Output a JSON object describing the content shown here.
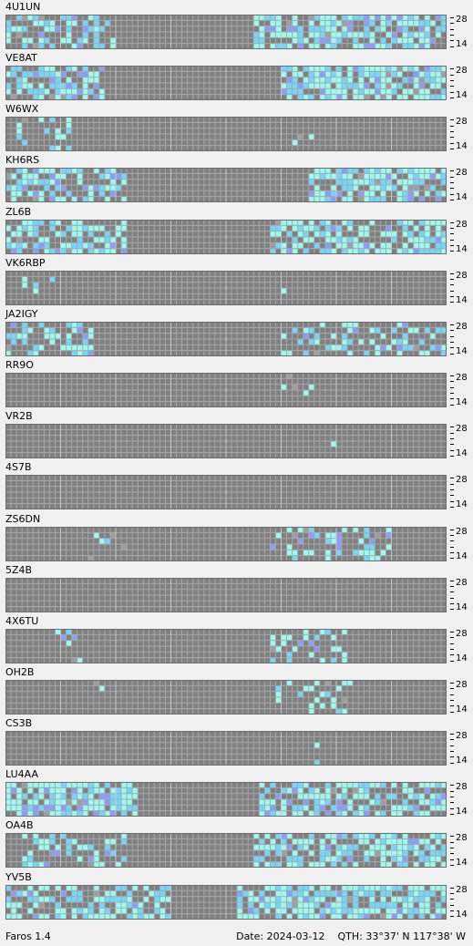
{
  "colors": {
    "panel_bg": "#f0f0f0",
    "cell_off": "#808080",
    "cell_border": "#a8a8a8",
    "grid_border": "#6e6e6e",
    "weak": "#9e9e9e",
    "good": "#98fcf0",
    "strong": "#70d8ff",
    "very_strong": "#8a9cff"
  },
  "band_labels": {
    "top": "28",
    "bottom": "14"
  },
  "beacons": [
    {
      "call": "4U1UN"
    },
    {
      "call": "VE8AT"
    },
    {
      "call": "W6WX"
    },
    {
      "call": "KH6RS"
    },
    {
      "call": "ZL6B"
    },
    {
      "call": "VK6RBP"
    },
    {
      "call": "JA2IGY"
    },
    {
      "call": "RR9O"
    },
    {
      "call": "VR2B"
    },
    {
      "call": "4S7B"
    },
    {
      "call": "ZS6DN"
    },
    {
      "call": "5Z4B"
    },
    {
      "call": "4X6TU"
    },
    {
      "call": "OH2B"
    },
    {
      "call": "CS3B"
    },
    {
      "call": "LU4AA"
    },
    {
      "call": "OA4B"
    },
    {
      "call": "YV5B"
    }
  ],
  "footer": {
    "app_name": "Faros 1.4",
    "date_label": "Date: 2024-03-12",
    "qth_label": "QTH: 33°37' N  117°38' W"
  }
}
